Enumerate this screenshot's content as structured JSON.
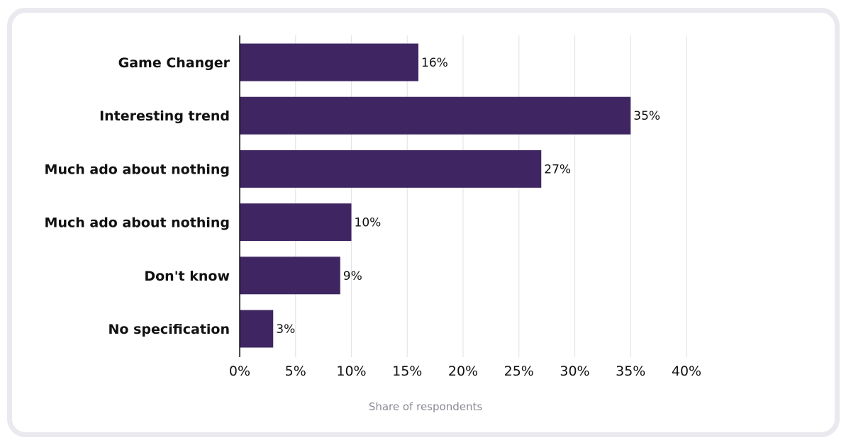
{
  "chart_data": {
    "type": "bar",
    "orientation": "horizontal",
    "categories": [
      "Game Changer",
      "Interesting trend",
      "Much ado about nothing",
      "Much ado about nothing",
      "Don't know",
      "No specification"
    ],
    "values": [
      16,
      35,
      27,
      10,
      9,
      3
    ],
    "value_labels": [
      "16%",
      "35%",
      "27%",
      "10%",
      "9%",
      "3%"
    ],
    "xlim": [
      0,
      40
    ],
    "x_ticks": [
      0,
      5,
      10,
      15,
      20,
      25,
      30,
      35,
      40
    ],
    "x_tick_labels": [
      "0%",
      "5%",
      "10%",
      "15%",
      "20%",
      "25%",
      "30%",
      "35%",
      "40%"
    ],
    "xlabel": "Share of respondents",
    "ylabel": "",
    "title": "",
    "grid": "vertical",
    "bar_color": "#3f2662",
    "grid_color": "#e4e4ea",
    "axis_color": "#111111"
  }
}
